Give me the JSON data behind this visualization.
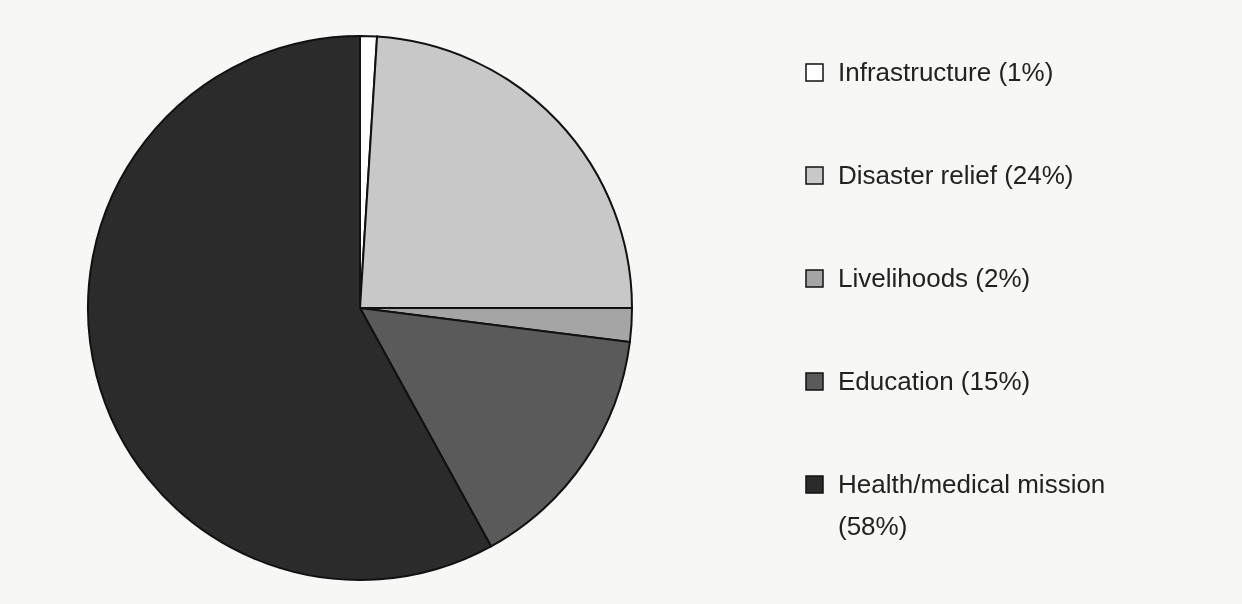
{
  "chart_data": {
    "type": "pie",
    "categories": [
      "Infrastructure (1%)",
      "Disaster relief (24%)",
      "Livelihoods (2%)",
      "Education (15%)",
      "Health/medical mission (58%)"
    ],
    "values": [
      1,
      24,
      2,
      15,
      58
    ],
    "colors": [
      "#ffffff",
      "#c8c8c8",
      "#a5a5a5",
      "#5a5a5a",
      "#2b2b2b"
    ],
    "legend": "right"
  }
}
